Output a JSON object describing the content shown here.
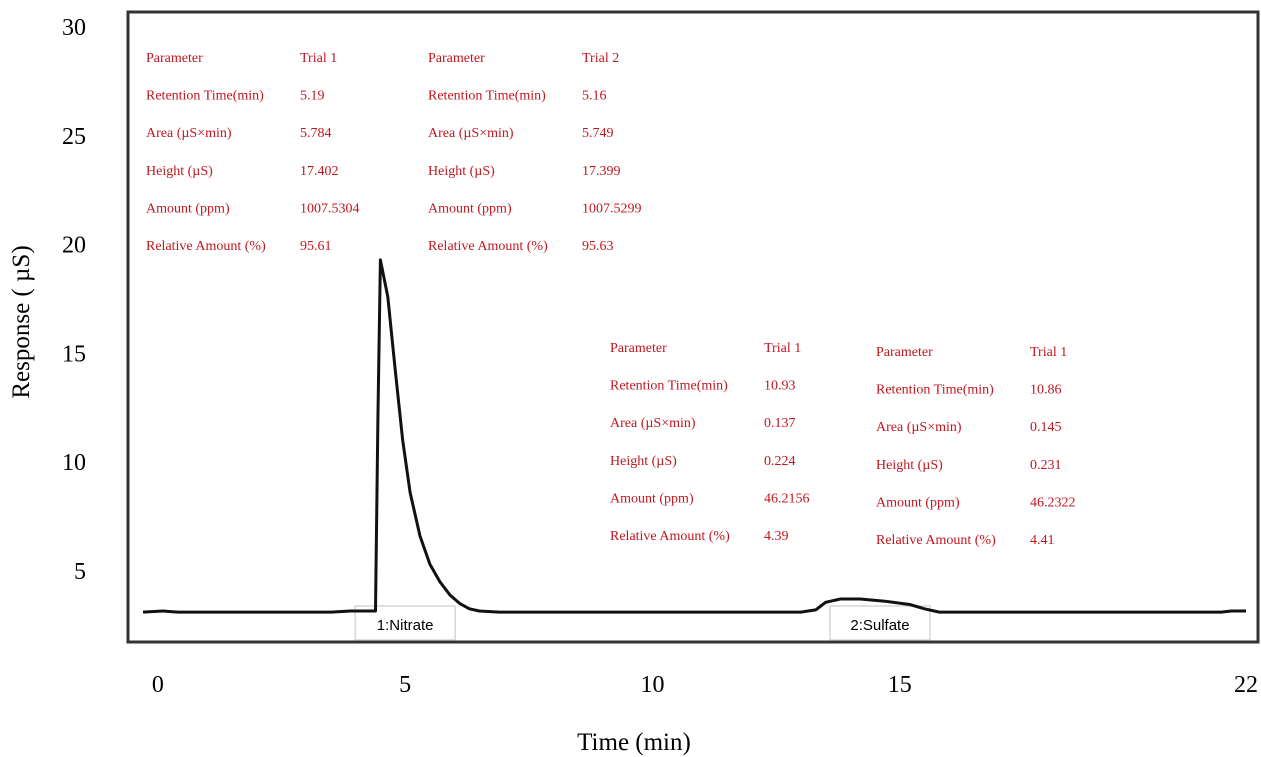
{
  "chart_data": {
    "type": "line",
    "xlabel": "Time (min)",
    "ylabel": "Response ( µS)",
    "x_ticks": [
      "0",
      "5",
      "10",
      "15",
      "22"
    ],
    "y_ticks": [
      "5",
      "10",
      "15",
      "20",
      "25",
      "30"
    ],
    "xlim": [
      -0.3,
      22
    ],
    "ylim": [
      2,
      30.7
    ],
    "series": [
      {
        "x": [
          -0.3,
          0.1,
          0.4,
          1.0,
          3.5,
          3.9,
          4.4,
          4.45,
          4.5,
          4.65,
          4.8,
          4.95,
          5.1,
          5.3,
          5.5,
          5.7,
          5.9,
          6.1,
          6.3,
          6.5,
          6.9,
          8.0,
          10.0,
          12.0,
          13.0,
          13.3,
          13.5,
          13.8,
          14.2,
          14.7,
          15.2,
          15.5,
          15.8,
          17.0,
          21.5,
          21.7,
          22.0
        ],
        "y": [
          3.1,
          3.15,
          3.1,
          3.1,
          3.1,
          3.15,
          3.15,
          12.0,
          19.3,
          17.6,
          14.2,
          11.0,
          8.6,
          6.6,
          5.3,
          4.5,
          3.9,
          3.5,
          3.25,
          3.15,
          3.1,
          3.1,
          3.1,
          3.1,
          3.1,
          3.2,
          3.55,
          3.7,
          3.7,
          3.6,
          3.45,
          3.25,
          3.1,
          3.1,
          3.1,
          3.15,
          3.15
        ]
      }
    ],
    "peak_labels": [
      {
        "text": "1:Nitrate",
        "x": 5.0
      },
      {
        "text": "2:Sulfate",
        "x": 14.6
      }
    ],
    "tables": [
      {
        "header": [
          "Parameter",
          "Trial 1"
        ],
        "rows": [
          [
            "Retention Time(min)",
            "5.19"
          ],
          [
            "Area (µS×min)",
            "5.784"
          ],
          [
            "Height (µS)",
            "17.402"
          ],
          [
            "Amount (ppm)",
            "1007.5304"
          ],
          [
            "Relative Amount (%)",
            "95.61"
          ]
        ]
      },
      {
        "header": [
          "Parameter",
          "Trial 2"
        ],
        "rows": [
          [
            "Retention Time(min)",
            "5.16"
          ],
          [
            "Area (µS×min)",
            "5.749"
          ],
          [
            "Height (µS)",
            "17.399"
          ],
          [
            "Amount (ppm)",
            "1007.5299"
          ],
          [
            "Relative Amount (%)",
            "95.63"
          ]
        ]
      },
      {
        "header": [
          "Parameter",
          "Trial 1"
        ],
        "rows": [
          [
            "Retention Time(min)",
            "10.93"
          ],
          [
            "Area (µS×min)",
            "0.137"
          ],
          [
            "Height (µS)",
            "0.224"
          ],
          [
            "Amount (ppm)",
            "46.2156"
          ],
          [
            "Relative Amount (%)",
            "4.39"
          ]
        ]
      },
      {
        "header": [
          "Parameter",
          "Trial 1"
        ],
        "rows": [
          [
            "Retention Time(min)",
            "10.86"
          ],
          [
            "Area (µS×min)",
            "0.145"
          ],
          [
            "Height (µS)",
            "0.231"
          ],
          [
            "Amount (ppm)",
            "46.2322"
          ],
          [
            "Relative Amount (%)",
            "4.41"
          ]
        ]
      }
    ],
    "grid": false,
    "legend": "none",
    "line_color": "#111111",
    "text_color": "#c0171f"
  }
}
